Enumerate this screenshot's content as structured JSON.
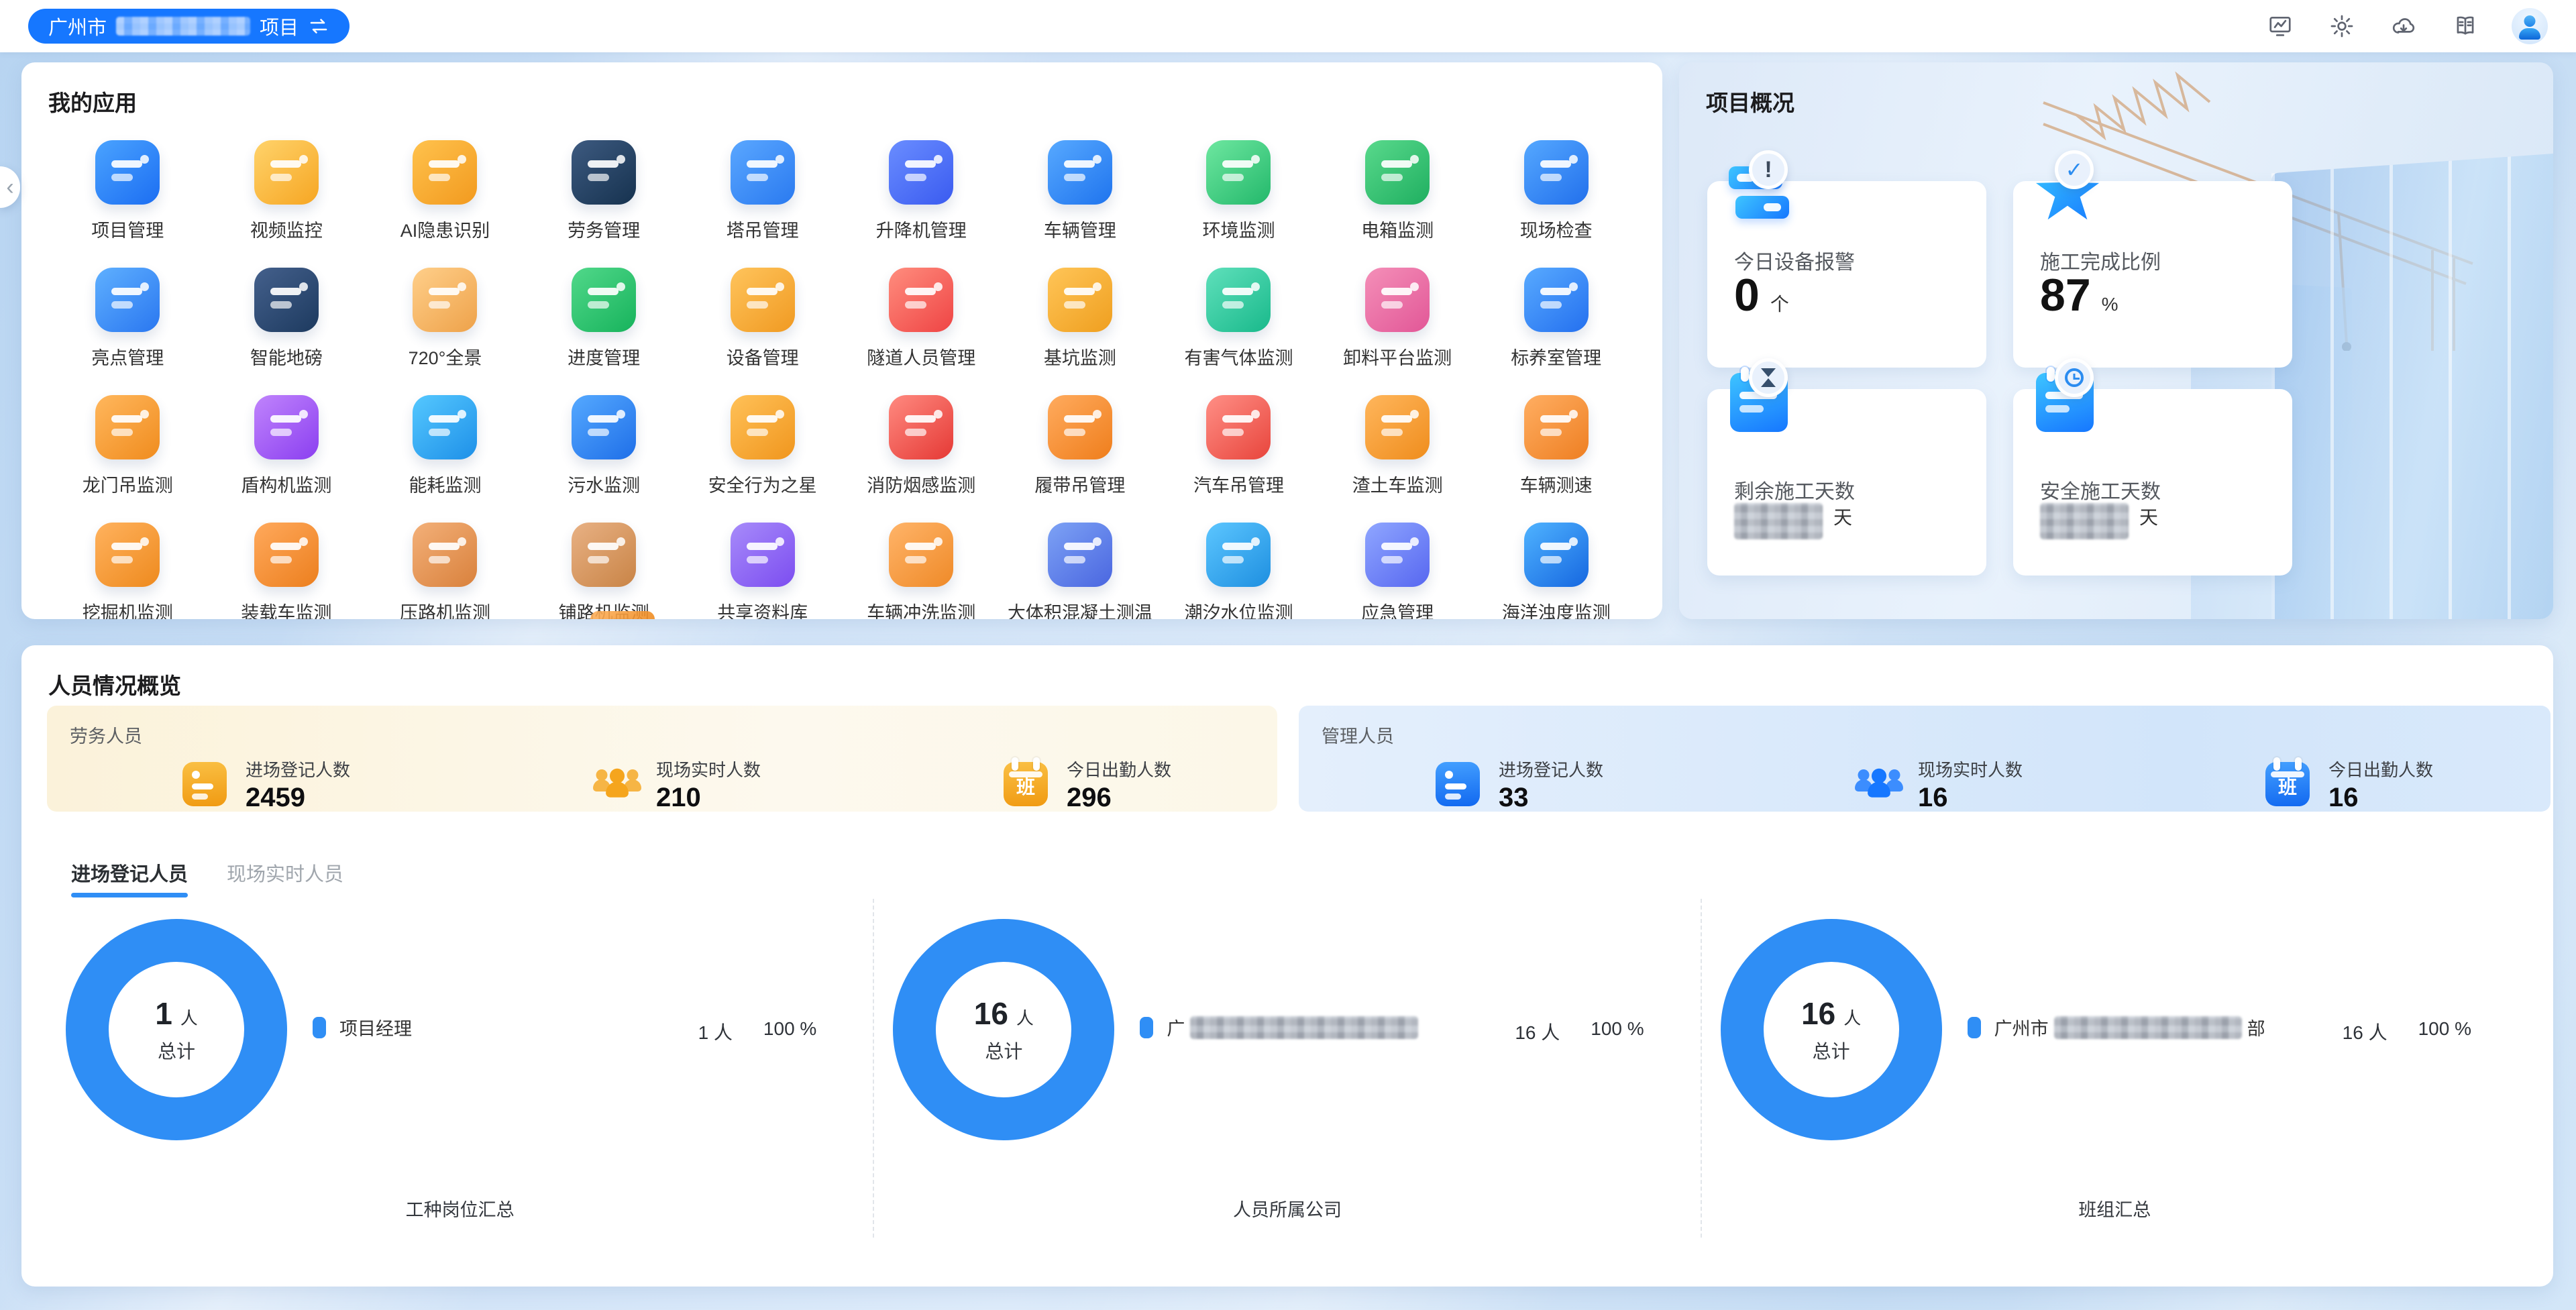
{
  "topbar": {
    "project": {
      "prefix": "广州市",
      "suffix": "项目",
      "name_censored": true
    },
    "icons": [
      "dashboard-monitor-icon",
      "settings-gear-icon",
      "cloud-download-icon",
      "manual-book-icon",
      "user-avatar"
    ]
  },
  "my_apps": {
    "title": "我的应用",
    "apps": [
      {
        "label": "项目管理",
        "colors": [
          "#4aa3ff",
          "#1c6ef2"
        ]
      },
      {
        "label": "视频监控",
        "colors": [
          "#ffd36b",
          "#f6a623"
        ]
      },
      {
        "label": "AI隐患识别",
        "colors": [
          "#ffc24d",
          "#f29a1f"
        ]
      },
      {
        "label": "劳务管理",
        "colors": [
          "#3d5a80",
          "#16324f"
        ]
      },
      {
        "label": "塔吊管理",
        "colors": [
          "#5aa7ff",
          "#2a7af0"
        ]
      },
      {
        "label": "升降机管理",
        "colors": [
          "#6a8dff",
          "#3a5bf0"
        ]
      },
      {
        "label": "车辆管理",
        "colors": [
          "#57a9ff",
          "#1f74ee"
        ]
      },
      {
        "label": "环境监测",
        "colors": [
          "#6ee7a0",
          "#23b86b"
        ]
      },
      {
        "label": "电箱监测",
        "colors": [
          "#59d98c",
          "#1faf60"
        ]
      },
      {
        "label": "现场检查",
        "colors": [
          "#55a8ff",
          "#2270ec"
        ]
      },
      {
        "label": "亮点管理",
        "colors": [
          "#5fb0ff",
          "#2a77f0"
        ]
      },
      {
        "label": "智能地磅",
        "colors": [
          "#44608c",
          "#1d3a5f"
        ]
      },
      {
        "label": "720°全景",
        "colors": [
          "#ffcf8a",
          "#eea24a"
        ]
      },
      {
        "label": "进度管理",
        "colors": [
          "#51d88a",
          "#17b35c"
        ]
      },
      {
        "label": "设备管理",
        "colors": [
          "#ffc45c",
          "#f09a22"
        ]
      },
      {
        "label": "隧道人员管理",
        "colors": [
          "#ff8d7e",
          "#ef4444"
        ]
      },
      {
        "label": "基坑监测",
        "colors": [
          "#ffc558",
          "#ef9f1f"
        ]
      },
      {
        "label": "有害气体监测",
        "colors": [
          "#5fe0bb",
          "#19b98b"
        ]
      },
      {
        "label": "卸料平台监测",
        "colors": [
          "#f48fb8",
          "#e25797"
        ]
      },
      {
        "label": "标养室管理",
        "colors": [
          "#58aaff",
          "#2470ef"
        ]
      },
      {
        "label": "龙门吊监测",
        "colors": [
          "#ffb75d",
          "#f08c1e"
        ]
      },
      {
        "label": "盾构机监测",
        "colors": [
          "#c084fc",
          "#8b3ff0"
        ]
      },
      {
        "label": "能耗监测",
        "colors": [
          "#55c8ff",
          "#1e90e8"
        ]
      },
      {
        "label": "污水监测",
        "colors": [
          "#55a9ff",
          "#1f6fe8"
        ]
      },
      {
        "label": "安全行为之星",
        "colors": [
          "#ffc158",
          "#f0961e"
        ]
      },
      {
        "label": "消防烟感监测",
        "colors": [
          "#ff8a80",
          "#e53935"
        ]
      },
      {
        "label": "履带吊管理",
        "colors": [
          "#ffab5e",
          "#ef7e1c"
        ]
      },
      {
        "label": "汽车吊管理",
        "colors": [
          "#ff8f86",
          "#e8453c"
        ]
      },
      {
        "label": "渣土车监测",
        "colors": [
          "#ffb65c",
          "#ef8d1d"
        ]
      },
      {
        "label": "车辆测速",
        "colors": [
          "#ffae62",
          "#ee7f22"
        ]
      },
      {
        "label": "挖掘机监测",
        "colors": [
          "#ffb25e",
          "#ee8a1e"
        ]
      },
      {
        "label": "装载车监测",
        "colors": [
          "#ffa95c",
          "#ec7f1e"
        ]
      },
      {
        "label": "压路机监测",
        "colors": [
          "#f3b079",
          "#d9813c"
        ]
      },
      {
        "label": "铺路机监测",
        "colors": [
          "#e8b184",
          "#c98446"
        ]
      },
      {
        "label": "共享资料库",
        "colors": [
          "#a78bfa",
          "#7c4df0"
        ]
      },
      {
        "label": "车辆冲洗监测",
        "colors": [
          "#ffb469",
          "#ef8a28"
        ]
      },
      {
        "label": "大体积混凝土测温",
        "colors": [
          "#7da2f5",
          "#4a66e0"
        ]
      },
      {
        "label": "潮汐水位监测",
        "colors": [
          "#5cc6ff",
          "#1e8fe0"
        ]
      },
      {
        "label": "应急管理",
        "colors": [
          "#8fa6ff",
          "#5767f0"
        ]
      },
      {
        "label": "海洋浊度监测",
        "colors": [
          "#4fb3ff",
          "#1667e0"
        ]
      }
    ]
  },
  "project_overview": {
    "title": "项目概况",
    "cards": [
      {
        "label": "今日设备报警",
        "value": "0",
        "unit": "个",
        "icon": "device-alert-icon",
        "censored": false
      },
      {
        "label": "施工完成比例",
        "value": "87",
        "unit": "%",
        "icon": "star-check-icon",
        "censored": false
      },
      {
        "label": "剩余施工天数",
        "value": "",
        "unit": "天",
        "icon": "calendar-hourglass-icon",
        "censored": true
      },
      {
        "label": "安全施工天数",
        "value": "",
        "unit": "天",
        "icon": "calendar-clock-icon",
        "censored": true
      }
    ]
  },
  "personnel": {
    "title": "人员情况概览",
    "labor": {
      "group_label": "劳务人员",
      "stats": [
        {
          "label": "进场登记人数",
          "value": "2459",
          "icon": "idcard-icon"
        },
        {
          "label": "现场实时人数",
          "value": "210",
          "icon": "people-icon"
        },
        {
          "label": "今日出勤人数",
          "value": "296",
          "icon": "calendar-ban-icon",
          "icon_text": "班"
        }
      ]
    },
    "management": {
      "group_label": "管理人员",
      "stats": [
        {
          "label": "进场登记人数",
          "value": "33",
          "icon": "idcard-icon"
        },
        {
          "label": "现场实时人数",
          "value": "16",
          "icon": "people-icon"
        },
        {
          "label": "今日出勤人数",
          "value": "16",
          "icon": "calendar-ban-icon",
          "icon_text": "班"
        }
      ]
    },
    "tabs": [
      {
        "label": "进场登记人员",
        "active": true
      },
      {
        "label": "现场实时人员",
        "active": false
      }
    ],
    "charts": [
      {
        "total_value": "1",
        "total_unit": "人",
        "total_caption": "总计",
        "legend_prefix": "项目经理",
        "legend_censored": false,
        "legend_suffix": "",
        "count": "1 人",
        "percent": "100 %",
        "caption": "工种岗位汇总"
      },
      {
        "total_value": "16",
        "total_unit": "人",
        "total_caption": "总计",
        "legend_prefix": "广",
        "legend_censored": true,
        "legend_suffix": "",
        "count": "16 人",
        "percent": "100 %",
        "caption": "人员所属公司"
      },
      {
        "total_value": "16",
        "total_unit": "人",
        "total_caption": "总计",
        "legend_prefix": "广州市",
        "legend_censored": true,
        "legend_suffix": "部",
        "count": "16 人",
        "percent": "100 %",
        "caption": "班组汇总"
      }
    ]
  },
  "chart_data": [
    {
      "type": "pie",
      "title": "工种岗位汇总",
      "labels": [
        "项目经理"
      ],
      "values": [
        1
      ],
      "total": 1,
      "unit": "人",
      "percents": [
        100
      ],
      "legend_position": "right",
      "donut": true,
      "color": "#2f8ef5"
    },
    {
      "type": "pie",
      "title": "人员所属公司",
      "labels": [
        "广…(censored)"
      ],
      "values": [
        16
      ],
      "total": 16,
      "unit": "人",
      "percents": [
        100
      ],
      "legend_position": "right",
      "donut": true,
      "color": "#2f8ef5"
    },
    {
      "type": "pie",
      "title": "班组汇总",
      "labels": [
        "广州市…(censored)部"
      ],
      "values": [
        16
      ],
      "total": 16,
      "unit": "人",
      "percents": [
        100
      ],
      "legend_position": "right",
      "donut": true,
      "color": "#2f8ef5"
    }
  ],
  "colors": {
    "accent": "#1677ff",
    "donut": "#2f8ef5",
    "labor_strip": "#fbf2da",
    "mgmt_strip": "#d2e5fa"
  }
}
